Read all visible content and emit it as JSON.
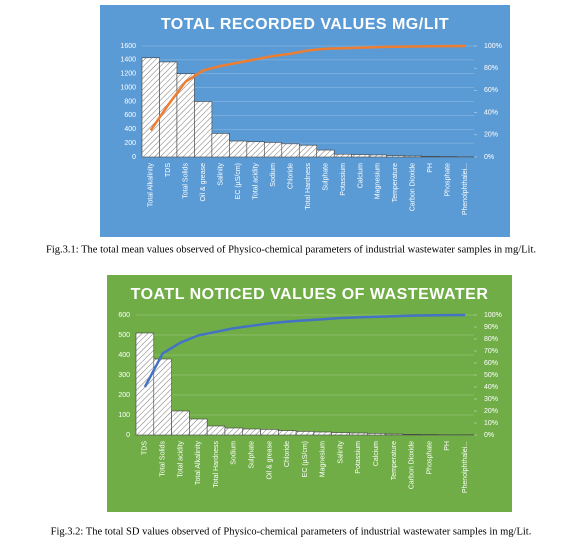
{
  "chart_data": [
    {
      "type": "bar",
      "title": "TOTAL RECORDED VALUES MG/LIT",
      "caption": "Fig.3.1: The total mean values observed of Physico-chemical parameters of industrial wastewater samples in mg/Lit.",
      "background": "#5b9bd5",
      "categories": [
        "Total Alkalinity",
        "TDS",
        "Total Solids",
        "Oil & grease",
        "Salinity",
        "EC (µS/cm)",
        "Total acidity",
        "Sodium",
        "Chloride",
        "Total Hardness",
        "Sulphate",
        "Potassium",
        "Calcium",
        "Magnesium",
        "Temperature",
        "Carbon Dioxide",
        "PH",
        "Phosphate",
        "Phenolphthalei..."
      ],
      "series": [
        {
          "color": "#ffffff",
          "values": [
            1430,
            1370,
            1200,
            800,
            340,
            230,
            220,
            210,
            190,
            170,
            100,
            40,
            35,
            30,
            20,
            15,
            8,
            5,
            2
          ]
        },
        {
          "type": "line",
          "axis": "y2",
          "color": "#ed7d31",
          "values": [
            24,
            47,
            68,
            78,
            82,
            85,
            88,
            91,
            93,
            96,
            97.5,
            98,
            98.5,
            99,
            99.3,
            99.6,
            99.8,
            99.9,
            100
          ]
        }
      ],
      "ylim": [
        0,
        1600
      ],
      "yticks": [
        0,
        200,
        400,
        600,
        800,
        1000,
        1200,
        1400,
        1600
      ],
      "y2lim": [
        0,
        100
      ],
      "y2ticks": [
        {
          "value": 0,
          "label": "0%"
        },
        {
          "value": 20,
          "label": "20%"
        },
        {
          "value": 40,
          "label": "40%"
        },
        {
          "value": 60,
          "label": "60%"
        },
        {
          "value": 80,
          "label": "80%"
        },
        {
          "value": 100,
          "label": "100%"
        }
      ]
    },
    {
      "type": "bar",
      "title": "TOATL NOTICED VALUES OF WASTEWATER",
      "caption": "Fig.3.2: The total SD values observed of Physico-chemical parameters of industrial wastewater samples in mg/Lit.",
      "background": "#70ad47",
      "categories": [
        "TDS",
        "Total Solids",
        "Total acidity",
        "Total Alkalinity",
        "Total Hardness",
        "Sodium",
        "Sulphate",
        "Oil & grease",
        "Chloride",
        "EC (µS/cm)",
        "Magnesium",
        "Salinity",
        "Potassium",
        "Calcium",
        "Temperature",
        "Carbon Dioxide",
        "Phosphate",
        "PH",
        "Phenolphthalei..."
      ],
      "series": [
        {
          "color": "#ffffff",
          "values": [
            510,
            380,
            120,
            80,
            45,
            35,
            30,
            28,
            22,
            18,
            15,
            12,
            10,
            8,
            5,
            3,
            2,
            1,
            1
          ]
        },
        {
          "type": "line",
          "axis": "y2",
          "color": "#4472c4",
          "values": [
            40,
            68,
            77,
            83,
            86,
            89,
            91,
            93,
            94.5,
            95.5,
            96.5,
            97.5,
            98,
            98.5,
            99,
            99.5,
            99.7,
            99.9,
            100
          ]
        }
      ],
      "ylim": [
        0,
        600
      ],
      "yticks": [
        0,
        100,
        200,
        300,
        400,
        500,
        600
      ],
      "y2lim": [
        0,
        100
      ],
      "y2ticks": [
        {
          "value": 0,
          "label": "0%"
        },
        {
          "value": 10,
          "label": "10%"
        },
        {
          "value": 20,
          "label": "20%"
        },
        {
          "value": 30,
          "label": "30%"
        },
        {
          "value": 40,
          "label": "40%"
        },
        {
          "value": 50,
          "label": "50%"
        },
        {
          "value": 60,
          "label": "60%"
        },
        {
          "value": 70,
          "label": "70%"
        },
        {
          "value": 80,
          "label": "80%"
        },
        {
          "value": 90,
          "label": "90%"
        },
        {
          "value": 100,
          "label": "100%"
        }
      ]
    }
  ]
}
